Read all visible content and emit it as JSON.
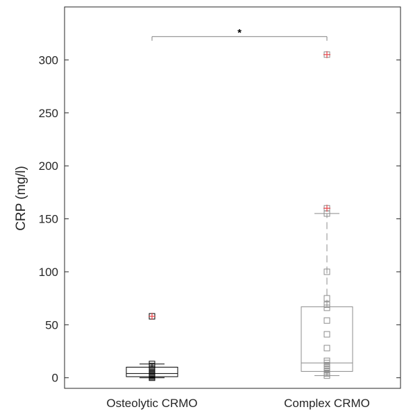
{
  "chart_data": {
    "type": "box",
    "title": "",
    "xlabel": "",
    "ylabel": "CRP (mg/l)",
    "ylim": [
      -10,
      350
    ],
    "yticks": [
      0,
      50,
      100,
      150,
      200,
      250,
      300
    ],
    "categories": [
      "Osteolytic CRMO",
      "Complex CRMO"
    ],
    "groups": [
      {
        "label": "Osteolytic CRMO",
        "color": "#000000",
        "box": {
          "q1": 1,
          "median": 4,
          "q3": 10,
          "whisker_low": 0,
          "whisker_high": 13
        },
        "points": [
          0,
          1,
          2,
          3,
          4,
          5,
          7,
          9,
          11,
          13,
          58
        ],
        "outliers": [
          58
        ]
      },
      {
        "label": "Complex CRMO",
        "color": "#8c8c8c",
        "box": {
          "q1": 6,
          "median": 14,
          "q3": 67,
          "whisker_low": 2,
          "whisker_high": 155
        },
        "points": [
          2,
          4,
          6,
          8,
          10,
          12,
          14,
          16,
          28,
          41,
          54,
          66,
          69,
          75,
          100,
          155,
          160,
          305
        ],
        "outliers": [
          160,
          305
        ]
      }
    ],
    "significance": {
      "between": [
        "Osteolytic CRMO",
        "Complex CRMO"
      ],
      "y": 322,
      "label": "*"
    },
    "colors": {
      "outlier": "#e8474c",
      "axis": "#262626"
    }
  }
}
